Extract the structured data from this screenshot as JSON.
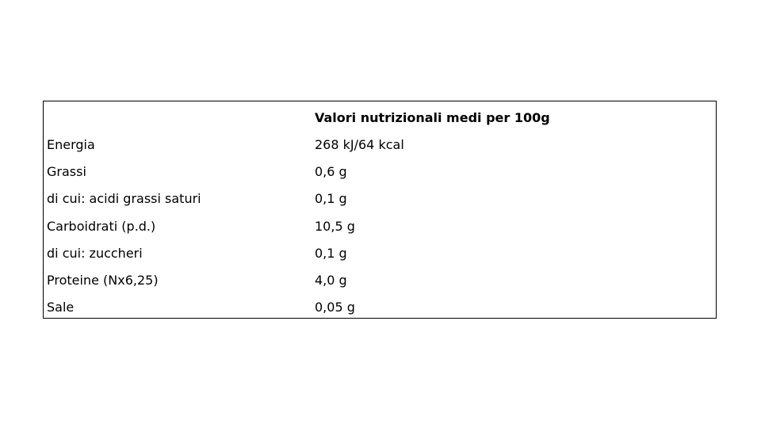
{
  "table": {
    "header": [
      "",
      "Valori nutrizionali medi per 100g"
    ],
    "rows": [
      [
        "Energia",
        "268 kJ/64 kcal"
      ],
      [
        "Grassi",
        "0,6 g"
      ],
      [
        "di cui: acidi grassi saturi",
        "0,1 g"
      ],
      [
        "Carboidrati (p.d.)",
        "10,5 g"
      ],
      [
        "di cui: zuccheri",
        "0,1 g"
      ],
      [
        "Proteine (Nx6,25)",
        "4,0 g"
      ],
      [
        "Sale",
        "0,05 g"
      ]
    ]
  }
}
